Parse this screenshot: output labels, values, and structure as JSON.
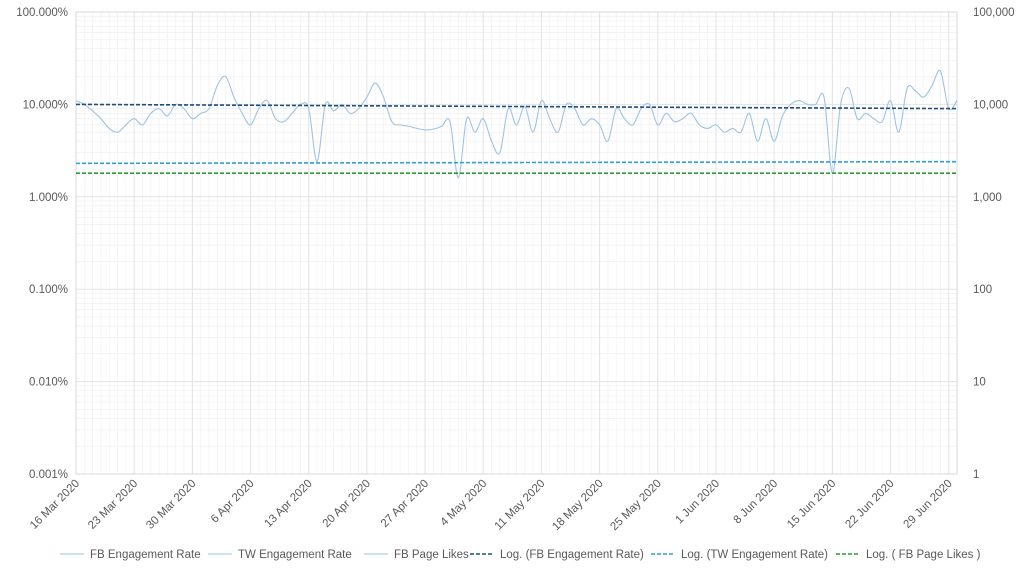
{
  "chart_data": {
    "type": "line",
    "x_tick_labels": [
      "16 Mar 2020",
      "23 Mar 2020",
      "30 Mar 2020",
      "6 Apr 2020",
      "13 Apr 2020",
      "20 Apr 2020",
      "27 Apr 2020",
      "4 May 2020",
      "11 May 2020",
      "18 May 2020",
      "25 May 2020",
      "1 Jun 2020",
      "8 Jun 2020",
      "15 Jun 2020",
      "22 Jun 2020",
      "29 Jun 2020"
    ],
    "x_range_days": [
      0,
      106
    ],
    "y_left": {
      "scale": "log",
      "ticks": [
        0.001,
        0.01,
        0.1,
        1,
        10,
        100
      ],
      "tick_labels": [
        "0.001%",
        "0.010%",
        "0.100%",
        "1.000%",
        "10.000%",
        "100.000%"
      ],
      "range": [
        0.001,
        100
      ]
    },
    "y_right": {
      "scale": "log",
      "ticks": [
        1,
        10,
        100,
        1000,
        10000,
        100000
      ],
      "tick_labels": [
        "1",
        "10",
        "100",
        "1,000",
        "10,000",
        "100,000"
      ],
      "range": [
        1,
        100000
      ]
    },
    "grid": true,
    "legend_position": "bottom",
    "colors": {
      "raw": "#9dc3e6",
      "fb_trend": "#1f4e79",
      "tw_trend": "#2e9fd8",
      "likes_trend": "#2e9b3a",
      "grid": "#e3e3e3"
    },
    "series": [
      {
        "name": "FB Engagement Rate",
        "axis": "left",
        "style": "solid",
        "points": [
          [
            0,
            11
          ],
          [
            1,
            10
          ],
          [
            2,
            8.5
          ],
          [
            3,
            7
          ],
          [
            4,
            5.5
          ],
          [
            5,
            5
          ],
          [
            6,
            6
          ],
          [
            7,
            7
          ],
          [
            8,
            6
          ],
          [
            9,
            8
          ],
          [
            10,
            9
          ],
          [
            11,
            7.5
          ],
          [
            12,
            10
          ],
          [
            13,
            9
          ],
          [
            14,
            7
          ],
          [
            15,
            8
          ],
          [
            16,
            9
          ],
          [
            17,
            16
          ],
          [
            18,
            20
          ],
          [
            19,
            12
          ],
          [
            20,
            8
          ],
          [
            21,
            6
          ],
          [
            22,
            9
          ],
          [
            23,
            11
          ],
          [
            24,
            7
          ],
          [
            25,
            6.5
          ],
          [
            26,
            8
          ],
          [
            27,
            10
          ],
          [
            28,
            9
          ],
          [
            29,
            2.4
          ],
          [
            30,
            10
          ],
          [
            31,
            8.5
          ],
          [
            32,
            10
          ],
          [
            33,
            8
          ],
          [
            34,
            9
          ],
          [
            35,
            12
          ],
          [
            36,
            17
          ],
          [
            37,
            12
          ],
          [
            38,
            6.5
          ],
          [
            39,
            6
          ],
          [
            40,
            5.8
          ],
          [
            41,
            5.5
          ],
          [
            42,
            5.3
          ],
          [
            43,
            5.4
          ],
          [
            44,
            5.8
          ],
          [
            45,
            6.5
          ],
          [
            46,
            1.6
          ],
          [
            47,
            7
          ],
          [
            48,
            5
          ],
          [
            49,
            7
          ],
          [
            50,
            4
          ],
          [
            51,
            3
          ],
          [
            52,
            9
          ],
          [
            53,
            6
          ],
          [
            54,
            9.5
          ],
          [
            55,
            5
          ],
          [
            56,
            11
          ],
          [
            57,
            7
          ],
          [
            58,
            5
          ],
          [
            59,
            10
          ],
          [
            60,
            9
          ],
          [
            61,
            6
          ],
          [
            62,
            7
          ],
          [
            63,
            6
          ],
          [
            64,
            4
          ],
          [
            65,
            9
          ],
          [
            66,
            7
          ],
          [
            67,
            6
          ],
          [
            68,
            9
          ],
          [
            69,
            10
          ],
          [
            70,
            6
          ],
          [
            71,
            8
          ],
          [
            72,
            6.5
          ],
          [
            73,
            7
          ],
          [
            74,
            8
          ],
          [
            75,
            6
          ],
          [
            76,
            5.5
          ],
          [
            77,
            6
          ],
          [
            78,
            5
          ],
          [
            79,
            5.5
          ],
          [
            80,
            5
          ],
          [
            81,
            8
          ],
          [
            82,
            4
          ],
          [
            83,
            7
          ],
          [
            84,
            4
          ],
          [
            85,
            7.5
          ],
          [
            86,
            10
          ],
          [
            87,
            11
          ],
          [
            88,
            10
          ],
          [
            89,
            10
          ],
          [
            90,
            12
          ],
          [
            91,
            1.8
          ],
          [
            92,
            10
          ],
          [
            93,
            15
          ],
          [
            94,
            7
          ],
          [
            95,
            8
          ],
          [
            96,
            7
          ],
          [
            97,
            6.5
          ],
          [
            98,
            11
          ],
          [
            99,
            5
          ],
          [
            100,
            15
          ],
          [
            101,
            14
          ],
          [
            102,
            12
          ],
          [
            103,
            16
          ],
          [
            104,
            23
          ],
          [
            105,
            9
          ],
          [
            106,
            11
          ]
        ]
      },
      {
        "name": "TW Engagement Rate",
        "axis": "left",
        "style": "solid",
        "points": []
      },
      {
        "name": "FB Page Likes",
        "axis": "right",
        "style": "solid",
        "points": []
      },
      {
        "name": "Log. (FB Engagement Rate)",
        "axis": "left",
        "style": "dash",
        "points": [
          [
            0,
            10
          ],
          [
            106,
            9
          ]
        ]
      },
      {
        "name": "Log. (TW Engagement Rate)",
        "axis": "left",
        "style": "dash",
        "points": [
          [
            0,
            2.3
          ],
          [
            106,
            2.4
          ]
        ]
      },
      {
        "name": "Log. ( FB Page Likes )",
        "axis": "left",
        "style": "dash",
        "points": [
          [
            0,
            1.8
          ],
          [
            106,
            1.8
          ]
        ]
      }
    ]
  }
}
